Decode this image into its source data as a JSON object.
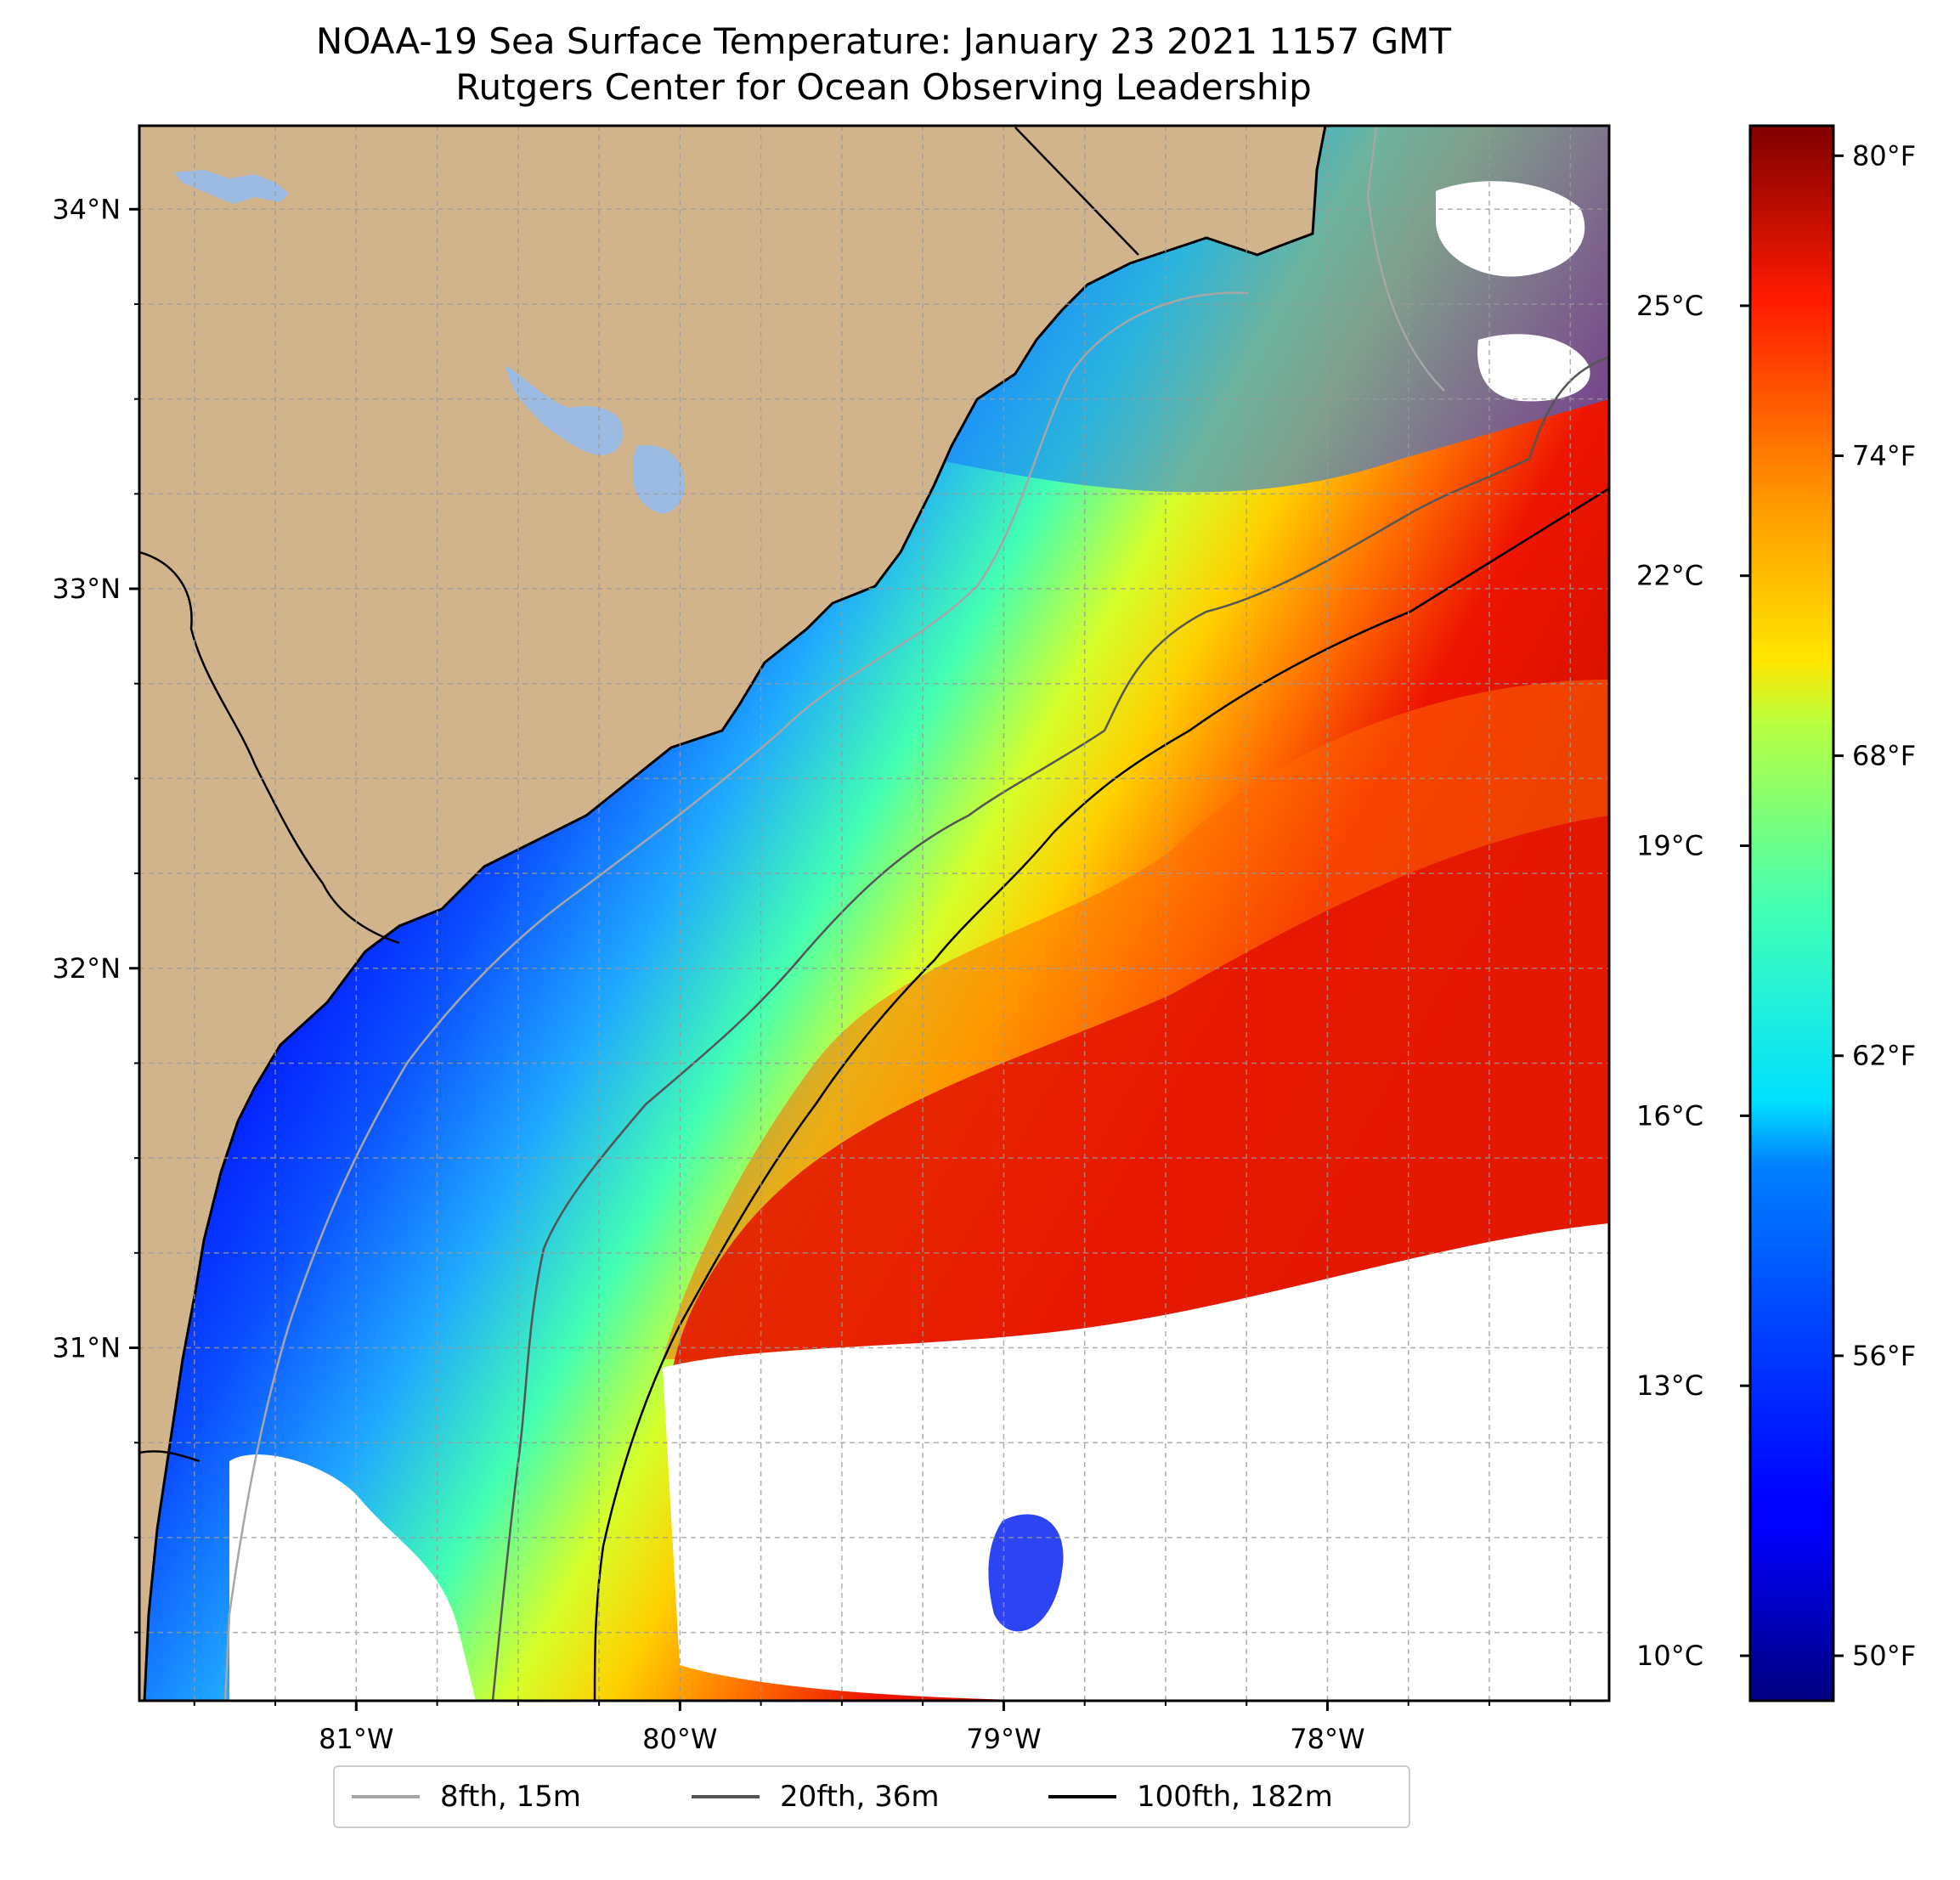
{
  "title": {
    "line1": "NOAA-19 Sea Surface Temperature: January 23 2021 1157 GMT",
    "line2": "Rutgers Center for Ocean Observing Leadership"
  },
  "map": {
    "lon_range": [
      -81.67,
      -77.13
    ],
    "lat_range": [
      30.07,
      34.22
    ],
    "lat_ticks": [
      {
        "value": 34,
        "label": "34°N"
      },
      {
        "value": 33,
        "label": "33°N"
      },
      {
        "value": 32,
        "label": "32°N"
      },
      {
        "value": 31,
        "label": "31°N"
      }
    ],
    "lon_ticks": [
      {
        "value": -81,
        "label": "81°W"
      },
      {
        "value": -80,
        "label": "80°W"
      },
      {
        "value": -79,
        "label": "79°W"
      },
      {
        "value": -78,
        "label": "78°W"
      }
    ],
    "grid": true,
    "colors": {
      "land": "#d2b48c",
      "lakes": "#9cbbe3",
      "no_data": "#ffffff"
    }
  },
  "colorbar": {
    "colormap": "jet",
    "celsius_range": [
      9.5,
      27.0
    ],
    "celsius_ticks": [
      {
        "value": 25,
        "label": "25°C"
      },
      {
        "value": 22,
        "label": "22°C"
      },
      {
        "value": 19,
        "label": "19°C"
      },
      {
        "value": 16,
        "label": "16°C"
      },
      {
        "value": 13,
        "label": "13°C"
      },
      {
        "value": 10,
        "label": "10°C"
      }
    ],
    "fahrenheit_ticks": [
      {
        "value": 80,
        "label": "80°F"
      },
      {
        "value": 74,
        "label": "74°F"
      },
      {
        "value": 68,
        "label": "68°F"
      },
      {
        "value": 62,
        "label": "62°F"
      },
      {
        "value": 56,
        "label": "56°F"
      },
      {
        "value": 50,
        "label": "50°F"
      }
    ]
  },
  "legend": {
    "placement": "bottom-center",
    "items": [
      {
        "label": "8fth, 15m",
        "color": "#a6a6a6"
      },
      {
        "label": "20fth, 36m",
        "color": "#555555"
      },
      {
        "label": "100fth, 182m",
        "color": "#000000"
      }
    ]
  }
}
